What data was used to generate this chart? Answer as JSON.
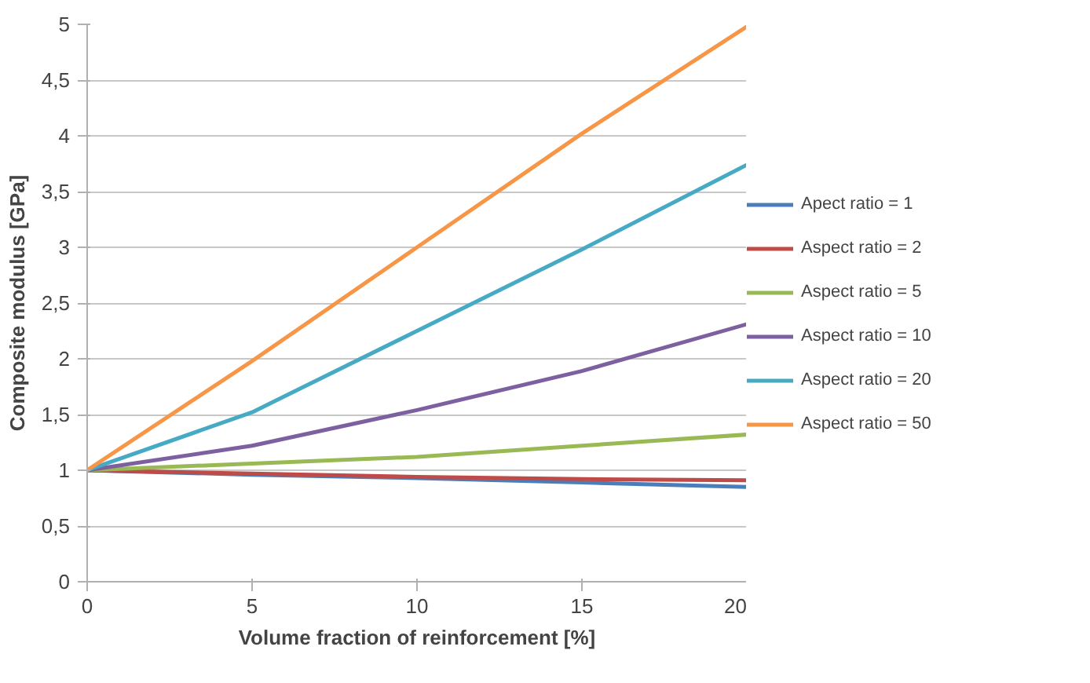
{
  "chart_data": {
    "type": "line",
    "xlabel": "Volume fraction of reinforcement [%]",
    "ylabel": "Composite modulus [GPa]",
    "x": [
      0,
      5,
      10,
      15,
      20
    ],
    "series": [
      {
        "name": "Apect ratio = 1",
        "color": "#4a7ebb",
        "values": [
          1,
          0.96,
          0.93,
          0.89,
          0.85
        ]
      },
      {
        "name": "Aspect ratio = 2",
        "color": "#be4b48",
        "values": [
          1,
          0.97,
          0.94,
          0.92,
          0.91
        ]
      },
      {
        "name": "Aspect ratio = 5",
        "color": "#98b954",
        "values": [
          1,
          1.06,
          1.12,
          1.22,
          1.32
        ]
      },
      {
        "name": "Aspect ratio = 10",
        "color": "#7d60a0",
        "values": [
          1,
          1.22,
          1.54,
          1.89,
          2.31
        ]
      },
      {
        "name": "Aspect ratio = 20",
        "color": "#46aac5",
        "values": [
          1,
          1.52,
          2.25,
          2.98,
          3.74
        ]
      },
      {
        "name": "Aspect ratio = 50",
        "color": "#f79646",
        "values": [
          1,
          1.98,
          3.0,
          4.02,
          4.98
        ]
      }
    ],
    "xlim": [
      0,
      20
    ],
    "xticks": [
      0,
      5,
      10,
      15,
      20
    ],
    "ylim": [
      0,
      5
    ],
    "yticks": [
      0,
      {
        "value": 0.5,
        "label": "0,5"
      },
      1,
      {
        "value": 1.5,
        "label": "1,5"
      },
      2,
      {
        "value": 2.5,
        "label": "2,5"
      },
      3,
      {
        "value": 3.5,
        "label": "3,5"
      },
      4,
      {
        "value": 4.5,
        "label": "4,5"
      },
      5
    ],
    "grid": "y",
    "legend": "right",
    "marker": "none",
    "line_style": "solid"
  }
}
